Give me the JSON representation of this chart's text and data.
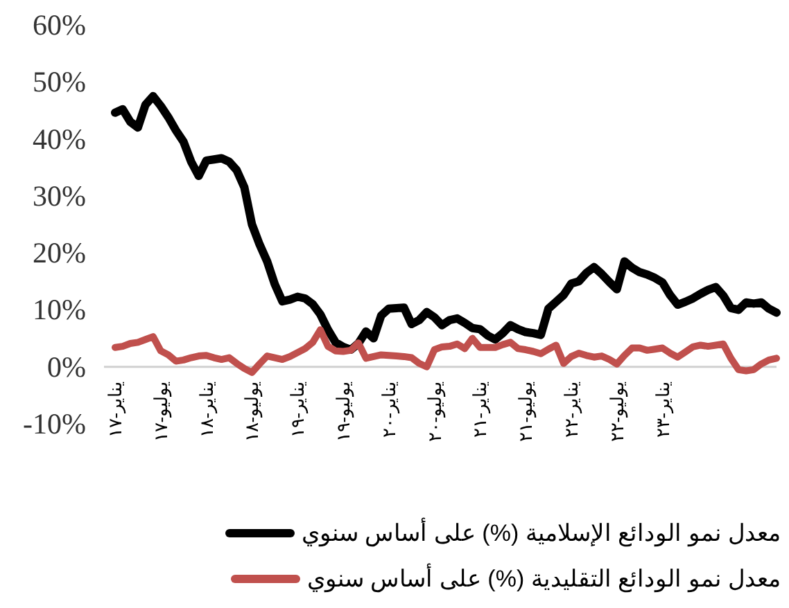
{
  "chart_data": {
    "type": "line",
    "categories": [
      "يناير-١٧",
      null,
      null,
      null,
      null,
      null,
      "يوليو-١٧",
      null,
      null,
      null,
      null,
      null,
      "يناير-١٨",
      null,
      null,
      null,
      null,
      null,
      "يوليو-١٨",
      null,
      null,
      null,
      null,
      null,
      "يناير-١٩",
      null,
      null,
      null,
      null,
      null,
      "يوليو-١٩",
      null,
      null,
      null,
      null,
      null,
      "يناير-٢٠",
      null,
      null,
      null,
      null,
      null,
      "يوليو-٢٠",
      null,
      null,
      null,
      null,
      null,
      "يناير-٢١",
      null,
      null,
      null,
      null,
      null,
      "يوليو-٢١",
      null,
      null,
      null,
      null,
      null,
      "يناير-٢٢",
      null,
      null,
      null,
      null,
      null,
      "يوليو-٢٢",
      null,
      null,
      null,
      null,
      null,
      "يناير-٢٣",
      null,
      null,
      null,
      null,
      null,
      null,
      null,
      null,
      null,
      null,
      null,
      null,
      null,
      null,
      null
    ],
    "series": [
      {
        "name": "معدل نمو الودائع الإسلامية (%) على أساس سنوي",
        "color": "#000000",
        "values": [
          44.6,
          45.2,
          43,
          42,
          46,
          47.5,
          45.8,
          43.8,
          41.5,
          39.5,
          36,
          33.5,
          36.2,
          36.4,
          36.6,
          36,
          34.5,
          31.5,
          25,
          21.5,
          18.5,
          14.5,
          11.5,
          11.8,
          12.3,
          12,
          11,
          9.2,
          6.5,
          4.3,
          3.5,
          3,
          4.1,
          6.2,
          5,
          9,
          10.2,
          10.3,
          10.4,
          7.5,
          8.2,
          9.6,
          8.7,
          7.3,
          8.2,
          8.5,
          7.7,
          6.8,
          6.6,
          5.5,
          4.8,
          5.9,
          7.3,
          6.6,
          6.1,
          5.9,
          5.6,
          10.2,
          11.4,
          12.6,
          14.6,
          15,
          16.5,
          17.5,
          16.3,
          14.9,
          13.6,
          18.5,
          17.4,
          16.6,
          16.2,
          15.6,
          14.8,
          12.6,
          10.9,
          11.4,
          12,
          12.8,
          13.5,
          14,
          12.5,
          10.3,
          10,
          11.3,
          11.1,
          11.3,
          10.2,
          9.5
        ]
      },
      {
        "name": "معدل نمو الودائع التقليدية (%) على أساس سنوي",
        "color": "#c0504d",
        "values": [
          3.4,
          3.6,
          4.1,
          4.3,
          4.8,
          5.3,
          2.8,
          2.1,
          1,
          1.2,
          1.6,
          1.9,
          2,
          1.6,
          1.3,
          1.6,
          0.6,
          -0.3,
          -1,
          0.5,
          1.9,
          1.6,
          1.3,
          1.8,
          2.5,
          3.2,
          4.3,
          6.5,
          3.6,
          2.8,
          2.7,
          2.9,
          4.2,
          1.5,
          1.8,
          2.1,
          2,
          1.9,
          1.8,
          1.6,
          0.6,
          0,
          3,
          3.5,
          3.6,
          4,
          3.2,
          5,
          3.4,
          3.4,
          3.4,
          3.9,
          4.3,
          3.2,
          3,
          2.7,
          2.3,
          3.1,
          3.8,
          0.6,
          1.8,
          2.4,
          2,
          1.7,
          1.9,
          1.3,
          0.5,
          2,
          3.3,
          3.3,
          2.9,
          3.1,
          3.3,
          2.4,
          1.7,
          2.6,
          3.5,
          3.8,
          3.6,
          3.8,
          4,
          1.5,
          -0.5,
          -0.7,
          -0.5,
          0.5,
          1.2,
          1.5
        ]
      }
    ],
    "ylim": [
      -10,
      60
    ],
    "yticks": [
      {
        "value": -10,
        "label": "-10%"
      },
      {
        "value": 0,
        "label": "0%"
      },
      {
        "value": 10,
        "label": "10%"
      },
      {
        "value": 20,
        "label": "20%"
      },
      {
        "value": 30,
        "label": "30%"
      },
      {
        "value": 40,
        "label": "40%"
      },
      {
        "value": 50,
        "label": "50%"
      },
      {
        "value": 60,
        "label": "60%"
      }
    ],
    "legend": "bottom"
  }
}
